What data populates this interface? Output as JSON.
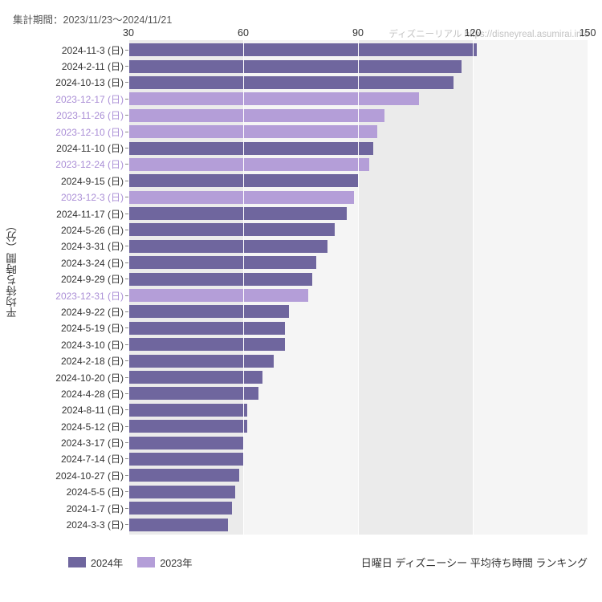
{
  "subtitle": "集計期間：2023/11/23～2024/11/21",
  "watermark": "ディズニーリアル https://disneyreal.asumirai.info",
  "yaxis_title": "平均待ち時間（分）",
  "caption": "日曜日 ディズニーシー 平均待ち時間 ランキング",
  "chart": {
    "type": "bar-horizontal",
    "x_min": 30,
    "x_max": 150,
    "xticks": [
      30,
      60,
      90,
      120,
      150
    ],
    "background_bands": [
      "#ebebeb",
      "#f5f5f5",
      "#ebebeb",
      "#f5f5f5"
    ],
    "gridline_color": "#ffffff",
    "label_color_2024": "#333333",
    "label_color_2023": "#aa8ed6",
    "label_fontsize": 12,
    "tick_fontsize": 12.5,
    "colors": {
      "y2024": "#6f669e",
      "y2023": "#b49ed8"
    },
    "rows": [
      {
        "label": "2024-11-3 (日)",
        "value": 121,
        "year": "y2024"
      },
      {
        "label": "2024-2-11 (日)",
        "value": 117,
        "year": "y2024"
      },
      {
        "label": "2024-10-13 (日)",
        "value": 115,
        "year": "y2024"
      },
      {
        "label": "2023-12-17 (日)",
        "value": 106,
        "year": "y2023"
      },
      {
        "label": "2023-11-26 (日)",
        "value": 97,
        "year": "y2023"
      },
      {
        "label": "2023-12-10 (日)",
        "value": 95,
        "year": "y2023"
      },
      {
        "label": "2024-11-10 (日)",
        "value": 94,
        "year": "y2024"
      },
      {
        "label": "2023-12-24 (日)",
        "value": 93,
        "year": "y2023"
      },
      {
        "label": "2024-9-15 (日)",
        "value": 90,
        "year": "y2024"
      },
      {
        "label": "2023-12-3 (日)",
        "value": 89,
        "year": "y2023"
      },
      {
        "label": "2024-11-17 (日)",
        "value": 87,
        "year": "y2024"
      },
      {
        "label": "2024-5-26 (日)",
        "value": 84,
        "year": "y2024"
      },
      {
        "label": "2024-3-31 (日)",
        "value": 82,
        "year": "y2024"
      },
      {
        "label": "2024-3-24 (日)",
        "value": 79,
        "year": "y2024"
      },
      {
        "label": "2024-9-29 (日)",
        "value": 78,
        "year": "y2024"
      },
      {
        "label": "2023-12-31 (日)",
        "value": 77,
        "year": "y2023"
      },
      {
        "label": "2024-9-22 (日)",
        "value": 72,
        "year": "y2024"
      },
      {
        "label": "2024-5-19 (日)",
        "value": 71,
        "year": "y2024"
      },
      {
        "label": "2024-3-10 (日)",
        "value": 71,
        "year": "y2024"
      },
      {
        "label": "2024-2-18 (日)",
        "value": 68,
        "year": "y2024"
      },
      {
        "label": "2024-10-20 (日)",
        "value": 65,
        "year": "y2024"
      },
      {
        "label": "2024-4-28 (日)",
        "value": 64,
        "year": "y2024"
      },
      {
        "label": "2024-8-11 (日)",
        "value": 61,
        "year": "y2024"
      },
      {
        "label": "2024-5-12 (日)",
        "value": 61,
        "year": "y2024"
      },
      {
        "label": "2024-3-17 (日)",
        "value": 60,
        "year": "y2024"
      },
      {
        "label": "2024-7-14 (日)",
        "value": 60,
        "year": "y2024"
      },
      {
        "label": "2024-10-27 (日)",
        "value": 59,
        "year": "y2024"
      },
      {
        "label": "2024-5-5 (日)",
        "value": 58,
        "year": "y2024"
      },
      {
        "label": "2024-1-7 (日)",
        "value": 57,
        "year": "y2024"
      },
      {
        "label": "2024-3-3 (日)",
        "value": 56,
        "year": "y2024"
      }
    ]
  },
  "legend": [
    {
      "label": "2024年",
      "key": "y2024"
    },
    {
      "label": "2023年",
      "key": "y2023"
    }
  ]
}
